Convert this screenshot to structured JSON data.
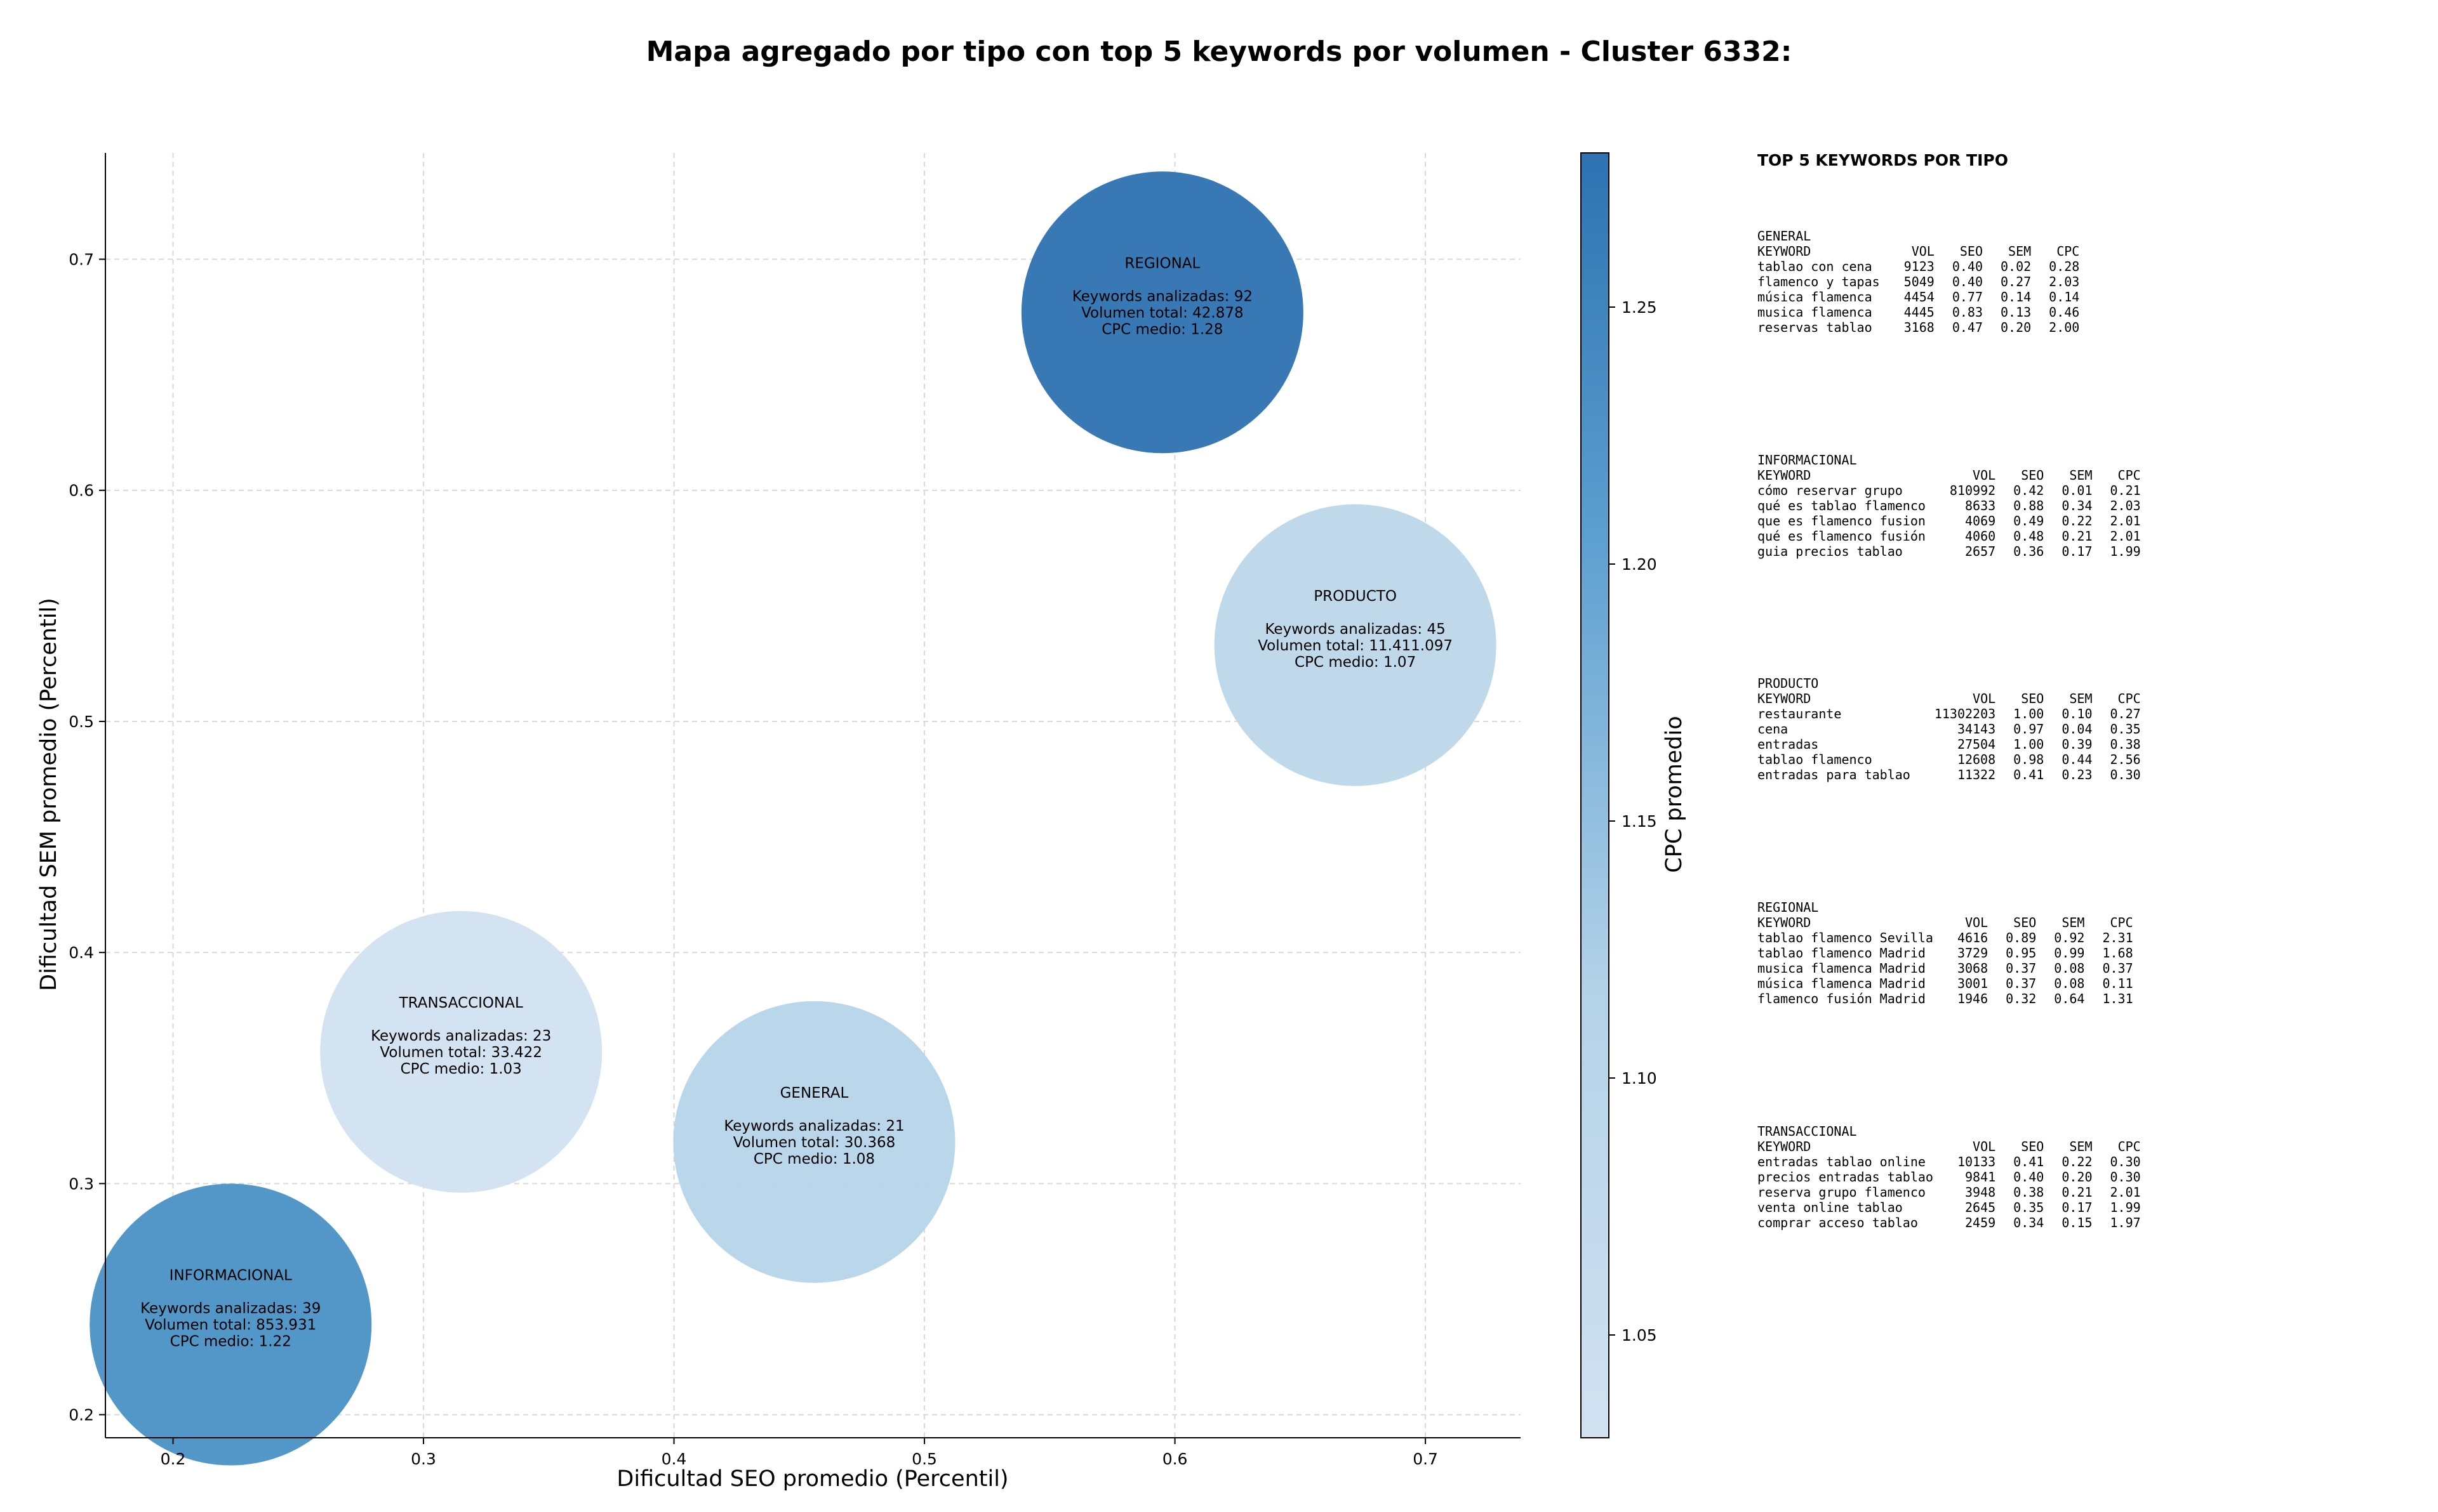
{
  "title": "Mapa agregado por tipo con top 5 keywords por volumen - Cluster 6332:",
  "chart_data": {
    "type": "scatter",
    "title": "Mapa agregado por tipo con top 5 keywords por volumen - Cluster 6332:",
    "xlabel": "Dificultad SEO promedio (Percentil)",
    "ylabel": "Dificultad SEM promedio (Percentil)",
    "xlim": [
      0.173,
      0.738
    ],
    "ylim": [
      0.19,
      0.746
    ],
    "xticks": [
      0.2,
      0.3,
      0.4,
      0.5,
      0.6,
      0.7
    ],
    "xtick_labels": [
      "0.2",
      "0.3",
      "0.4",
      "0.5",
      "0.6",
      "0.7"
    ],
    "yticks": [
      0.2,
      0.3,
      0.4,
      0.5,
      0.6,
      0.7
    ],
    "ytick_labels": [
      "0.2",
      "0.3",
      "0.4",
      "0.5",
      "0.6",
      "0.7"
    ],
    "grid": true,
    "colorbar": {
      "label": "CPC promedio",
      "range": [
        1.03,
        1.28
      ],
      "ticks": [
        1.05,
        1.1,
        1.15,
        1.2,
        1.25
      ],
      "tick_labels": [
        "1.05",
        "1.10",
        "1.15",
        "1.20",
        "1.25"
      ],
      "colormap": "Blues",
      "color_low": "#d2e1f0",
      "color_high": "#2d72b1"
    },
    "points": [
      {
        "name": "REGIONAL",
        "x": 0.595,
        "y": 0.677,
        "keywords_label": "Keywords analizadas: 92",
        "volume_label": "Volumen total: 42.878",
        "cpc_label": "CPC medio: 1.28",
        "cpc": 1.28,
        "color": "#2d72b1"
      },
      {
        "name": "PRODUCTO",
        "x": 0.672,
        "y": 0.533,
        "keywords_label": "Keywords analizadas: 45",
        "volume_label": "Volumen total: 11.411.097",
        "cpc_label": "CPC medio: 1.07",
        "cpc": 1.07,
        "color": "#bcd7ea"
      },
      {
        "name": "TRANSACCIONAL",
        "x": 0.315,
        "y": 0.357,
        "keywords_label": "Keywords analizadas: 23",
        "volume_label": "Volumen total: 33.422",
        "cpc_label": "CPC medio: 1.03",
        "cpc": 1.03,
        "color": "#d2e1f0"
      },
      {
        "name": "GENERAL",
        "x": 0.456,
        "y": 0.318,
        "keywords_label": "Keywords analizadas: 21",
        "volume_label": "Volumen total: 30.368",
        "cpc_label": "CPC medio: 1.08",
        "cpc": 1.08,
        "color": "#b6d4e9"
      },
      {
        "name": "INFORMACIONAL",
        "x": 0.223,
        "y": 0.239,
        "keywords_label": "Keywords analizadas: 39",
        "volume_label": "Volumen total: 853.931",
        "cpc_label": "CPC medio: 1.22",
        "cpc": 1.22,
        "color": "#4a91c6"
      }
    ]
  },
  "panel": {
    "title": "TOP 5 KEYWORDS POR TIPO",
    "headers": [
      "KEYWORD",
      "VOL",
      "SEO",
      "SEM",
      "CPC"
    ],
    "groups": [
      {
        "name": "GENERAL",
        "rows": [
          [
            "tablao con cena",
            "9123",
            "0.40",
            "0.02",
            "0.28"
          ],
          [
            "flamenco y tapas",
            "5049",
            "0.40",
            "0.27",
            "2.03"
          ],
          [
            "música flamenca",
            "4454",
            "0.77",
            "0.14",
            "0.14"
          ],
          [
            "musica flamenca",
            "4445",
            "0.83",
            "0.13",
            "0.46"
          ],
          [
            "reservas tablao",
            "3168",
            "0.47",
            "0.20",
            "2.00"
          ]
        ]
      },
      {
        "name": "INFORMACIONAL",
        "rows": [
          [
            "cómo reservar grupo",
            "810992",
            "0.42",
            "0.01",
            "0.21"
          ],
          [
            "qué es tablao flamenco",
            "8633",
            "0.88",
            "0.34",
            "2.03"
          ],
          [
            "que es flamenco fusion",
            "4069",
            "0.49",
            "0.22",
            "2.01"
          ],
          [
            "qué es flamenco fusión",
            "4060",
            "0.48",
            "0.21",
            "2.01"
          ],
          [
            "guia precios tablao",
            "2657",
            "0.36",
            "0.17",
            "1.99"
          ]
        ]
      },
      {
        "name": "PRODUCTO",
        "rows": [
          [
            "restaurante",
            "11302203",
            "1.00",
            "0.10",
            "0.27"
          ],
          [
            "cena",
            "34143",
            "0.97",
            "0.04",
            "0.35"
          ],
          [
            "entradas",
            "27504",
            "1.00",
            "0.39",
            "0.38"
          ],
          [
            "tablao flamenco",
            "12608",
            "0.98",
            "0.44",
            "2.56"
          ],
          [
            "entradas para tablao",
            "11322",
            "0.41",
            "0.23",
            "0.30"
          ]
        ]
      },
      {
        "name": "REGIONAL",
        "rows": [
          [
            "tablao flamenco Sevilla",
            "4616",
            "0.89",
            "0.92",
            "2.31"
          ],
          [
            "tablao flamenco Madrid",
            "3729",
            "0.95",
            "0.99",
            "1.68"
          ],
          [
            "musica flamenca Madrid",
            "3068",
            "0.37",
            "0.08",
            "0.37"
          ],
          [
            "música flamenca Madrid",
            "3001",
            "0.37",
            "0.08",
            "0.11"
          ],
          [
            "flamenco fusión Madrid",
            "1946",
            "0.32",
            "0.64",
            "1.31"
          ]
        ]
      },
      {
        "name": "TRANSACCIONAL",
        "rows": [
          [
            "entradas tablao online",
            "10133",
            "0.41",
            "0.22",
            "0.30"
          ],
          [
            "precios entradas tablao",
            "9841",
            "0.40",
            "0.20",
            "0.30"
          ],
          [
            "reserva grupo flamenco",
            "3948",
            "0.38",
            "0.21",
            "2.01"
          ],
          [
            "venta online tablao",
            "2645",
            "0.35",
            "0.17",
            "1.99"
          ],
          [
            "comprar acceso tablao",
            "2459",
            "0.34",
            "0.15",
            "1.97"
          ]
        ]
      }
    ]
  }
}
